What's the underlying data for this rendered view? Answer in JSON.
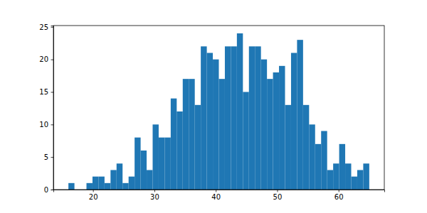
{
  "chart_data": {
    "type": "histogram",
    "color": "#1f77b4",
    "bins": [
      16,
      16.98,
      17.96,
      18.94,
      19.92,
      20.9,
      21.88,
      22.86,
      23.84,
      24.82,
      25.8,
      26.78,
      27.76,
      28.74,
      29.72,
      30.7,
      31.68,
      32.66,
      33.64,
      34.62,
      35.6,
      36.58,
      37.56,
      38.54,
      39.52,
      40.5,
      41.48,
      42.46,
      43.44,
      44.42,
      45.4,
      46.38,
      47.36,
      48.34,
      49.32,
      50.3,
      51.28,
      52.26,
      53.24,
      54.22,
      55.2,
      56.18,
      57.16,
      58.14,
      59.12,
      60.1,
      61.08,
      62.06,
      63.04,
      64.02,
      65
    ],
    "values": [
      1,
      0,
      0,
      1,
      2,
      2,
      1,
      3,
      4,
      1,
      2,
      8,
      6,
      3,
      10,
      8,
      8,
      14,
      12,
      17,
      17,
      13,
      22,
      21,
      20,
      17,
      22,
      22,
      24,
      15,
      22,
      22,
      20,
      17,
      18,
      19,
      13,
      21,
      23,
      13,
      10,
      7,
      9,
      3,
      4,
      7,
      4,
      2,
      3,
      4
    ],
    "xlim": [
      13.55,
      67.45
    ],
    "xticks": [
      20,
      30,
      40,
      50,
      60
    ],
    "ylim": [
      0,
      25.2
    ],
    "yticks": [
      0,
      5,
      10,
      15,
      20,
      25
    ]
  }
}
